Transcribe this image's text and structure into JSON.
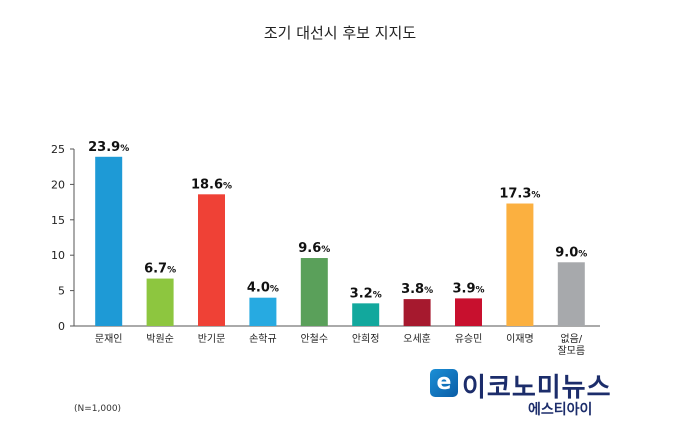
{
  "chart_data": {
    "type": "bar",
    "title": "조기 대선시 후보 지지도",
    "xlabel": "",
    "ylabel": "",
    "ylim": [
      0,
      25
    ],
    "yticks": [
      0,
      5,
      10,
      15,
      20,
      25
    ],
    "grid": false,
    "categories": [
      "문재인",
      "박원순",
      "반기문",
      "손학규",
      "안철수",
      "안희정",
      "오세훈",
      "유승민",
      "이재명",
      "없음/\n잘모름"
    ],
    "values": [
      23.9,
      6.7,
      18.6,
      4.0,
      9.6,
      3.2,
      3.8,
      3.9,
      17.3,
      9.0
    ],
    "value_labels": [
      "23.9",
      "6.7",
      "18.6",
      "4.0",
      "9.6",
      "3.2",
      "3.8",
      "3.9",
      "17.3",
      "9.0"
    ],
    "value_unit": "%",
    "colors": [
      "#1e9ad6",
      "#8dc63f",
      "#ef4136",
      "#27aae1",
      "#5aa05a",
      "#12a89d",
      "#a6192e",
      "#c8102e",
      "#fbb040",
      "#a7a9ac"
    ]
  },
  "note": "(N=1,000)",
  "logo": {
    "mark": "e",
    "name": "이코노미뉴스",
    "sub": "에스티아이"
  }
}
